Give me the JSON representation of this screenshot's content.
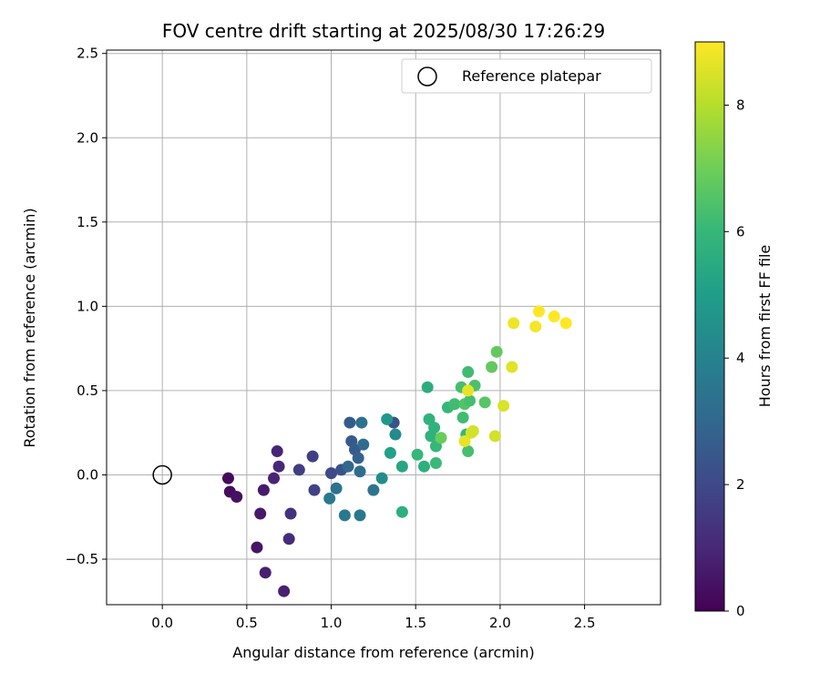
{
  "chart_data": {
    "type": "scatter",
    "title": "FOV centre drift starting at 2025/08/30 17:26:29",
    "xlabel": "Angular distance from reference (arcmin)",
    "ylabel": "Rotation from reference (arcmin)",
    "xlim": [
      -0.33,
      2.95
    ],
    "ylim": [
      -0.77,
      2.52
    ],
    "xticks": [
      "0.0",
      "0.5",
      "1.0",
      "1.5",
      "2.0",
      "2.5"
    ],
    "yticks": [
      "−0.5",
      "0.0",
      "0.5",
      "1.0",
      "1.5",
      "2.0",
      "2.5"
    ],
    "grid": true,
    "legend_position": "top-right",
    "reference": {
      "name": "Reference platepar",
      "x": 0.0,
      "y": 0.0
    },
    "colorbar": {
      "label": "Hours from first FF file",
      "range": [
        0,
        9
      ],
      "ticks": [
        "0",
        "2",
        "4",
        "6",
        "8"
      ],
      "colormap": "viridis"
    },
    "points": [
      {
        "x": 0.39,
        "y": -0.02,
        "h": 0.2
      },
      {
        "x": 0.4,
        "y": -0.1,
        "h": 0.3
      },
      {
        "x": 0.44,
        "y": -0.13,
        "h": 0.4
      },
      {
        "x": 0.56,
        "y": -0.43,
        "h": 0.5
      },
      {
        "x": 0.58,
        "y": -0.23,
        "h": 0.6
      },
      {
        "x": 0.6,
        "y": -0.09,
        "h": 0.7
      },
      {
        "x": 0.61,
        "y": -0.58,
        "h": 0.8
      },
      {
        "x": 0.66,
        "y": -0.02,
        "h": 0.9
      },
      {
        "x": 0.68,
        "y": 0.14,
        "h": 0.9
      },
      {
        "x": 0.69,
        "y": 0.05,
        "h": 1.0
      },
      {
        "x": 0.72,
        "y": -0.69,
        "h": 0.8
      },
      {
        "x": 0.75,
        "y": -0.38,
        "h": 1.1
      },
      {
        "x": 0.76,
        "y": -0.23,
        "h": 1.3
      },
      {
        "x": 0.81,
        "y": 0.03,
        "h": 1.6
      },
      {
        "x": 0.89,
        "y": 0.11,
        "h": 1.7
      },
      {
        "x": 0.9,
        "y": -0.09,
        "h": 1.8
      },
      {
        "x": 1.0,
        "y": 0.01,
        "h": 2.0
      },
      {
        "x": 1.06,
        "y": 0.03,
        "h": 2.3
      },
      {
        "x": 1.11,
        "y": 0.31,
        "h": 2.6
      },
      {
        "x": 1.12,
        "y": 0.2,
        "h": 2.5
      },
      {
        "x": 1.14,
        "y": 0.15,
        "h": 2.6
      },
      {
        "x": 1.16,
        "y": 0.1,
        "h": 2.8
      },
      {
        "x": 1.1,
        "y": 0.05,
        "h": 3.0
      },
      {
        "x": 1.17,
        "y": 0.02,
        "h": 3.2
      },
      {
        "x": 1.19,
        "y": 0.18,
        "h": 3.2
      },
      {
        "x": 1.18,
        "y": 0.31,
        "h": 3.4
      },
      {
        "x": 1.03,
        "y": -0.08,
        "h": 3.4
      },
      {
        "x": 0.99,
        "y": -0.14,
        "h": 3.7
      },
      {
        "x": 1.08,
        "y": -0.24,
        "h": 3.6
      },
      {
        "x": 1.17,
        "y": -0.24,
        "h": 3.6
      },
      {
        "x": 1.25,
        "y": -0.09,
        "h": 3.5
      },
      {
        "x": 1.3,
        "y": -0.02,
        "h": 4.4
      },
      {
        "x": 1.37,
        "y": 0.31,
        "h": 2.3
      },
      {
        "x": 1.38,
        "y": 0.24,
        "h": 4.3
      },
      {
        "x": 1.33,
        "y": 0.33,
        "h": 4.8
      },
      {
        "x": 1.35,
        "y": 0.13,
        "h": 5.1
      },
      {
        "x": 1.42,
        "y": 0.05,
        "h": 5.3
      },
      {
        "x": 1.42,
        "y": -0.22,
        "h": 5.7
      },
      {
        "x": 1.51,
        "y": 0.12,
        "h": 6.0
      },
      {
        "x": 1.55,
        "y": 0.05,
        "h": 5.7
      },
      {
        "x": 1.57,
        "y": 0.52,
        "h": 5.6
      },
      {
        "x": 1.58,
        "y": 0.33,
        "h": 5.8
      },
      {
        "x": 1.59,
        "y": 0.23,
        "h": 5.8
      },
      {
        "x": 1.61,
        "y": 0.28,
        "h": 5.8
      },
      {
        "x": 1.62,
        "y": 0.07,
        "h": 6.1
      },
      {
        "x": 1.62,
        "y": 0.17,
        "h": 6.0
      },
      {
        "x": 1.65,
        "y": 0.22,
        "h": 6.9
      },
      {
        "x": 1.69,
        "y": 0.4,
        "h": 6.0
      },
      {
        "x": 1.73,
        "y": 0.42,
        "h": 6.2
      },
      {
        "x": 1.77,
        "y": 0.52,
        "h": 6.3
      },
      {
        "x": 1.78,
        "y": 0.34,
        "h": 6.2
      },
      {
        "x": 1.79,
        "y": 0.42,
        "h": 6.5
      },
      {
        "x": 1.8,
        "y": 0.24,
        "h": 6.0
      },
      {
        "x": 1.81,
        "y": 0.61,
        "h": 6.2
      },
      {
        "x": 1.81,
        "y": 0.14,
        "h": 6.3
      },
      {
        "x": 1.82,
        "y": 0.44,
        "h": 6.3
      },
      {
        "x": 1.85,
        "y": 0.53,
        "h": 6.4
      },
      {
        "x": 1.91,
        "y": 0.43,
        "h": 6.6
      },
      {
        "x": 1.95,
        "y": 0.64,
        "h": 6.8
      },
      {
        "x": 1.98,
        "y": 0.73,
        "h": 6.8
      },
      {
        "x": 1.81,
        "y": 0.5,
        "h": 8.7
      },
      {
        "x": 1.79,
        "y": 0.2,
        "h": 8.7
      },
      {
        "x": 1.83,
        "y": 0.25,
        "h": 8.5
      },
      {
        "x": 1.84,
        "y": 0.26,
        "h": 8.4
      },
      {
        "x": 1.97,
        "y": 0.23,
        "h": 8.4
      },
      {
        "x": 2.02,
        "y": 0.41,
        "h": 8.5
      },
      {
        "x": 2.07,
        "y": 0.64,
        "h": 8.6
      },
      {
        "x": 2.08,
        "y": 0.9,
        "h": 8.8
      },
      {
        "x": 2.21,
        "y": 0.88,
        "h": 8.9
      },
      {
        "x": 2.23,
        "y": 0.97,
        "h": 9.0
      },
      {
        "x": 2.32,
        "y": 0.94,
        "h": 9.0
      },
      {
        "x": 2.39,
        "y": 0.9,
        "h": 9.0
      }
    ]
  }
}
